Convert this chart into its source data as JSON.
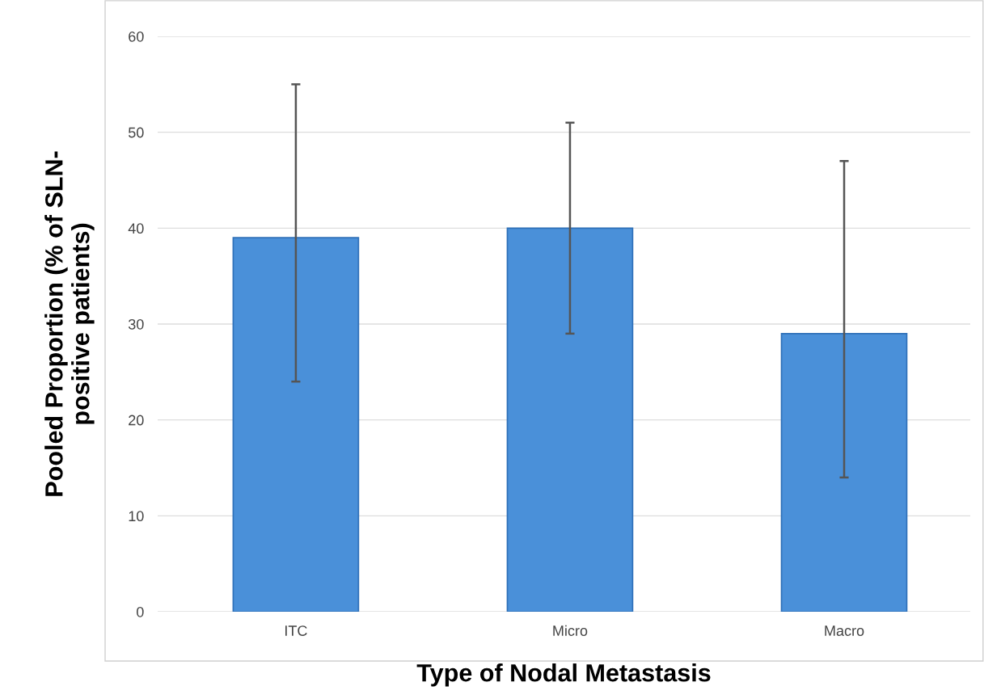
{
  "chart_data": {
    "type": "bar",
    "xlabel": "Type of Nodal Metastasis",
    "ylabel": "Pooled Proportion (% of SLN-\npositive patients)",
    "categories": [
      "ITC",
      "Micro",
      "Macro"
    ],
    "values": [
      39,
      40,
      29
    ],
    "errors": [
      [
        24,
        55
      ],
      [
        29,
        51
      ],
      [
        14,
        47
      ]
    ],
    "color": "#4a90d9",
    "ylim": [
      0,
      60
    ],
    "yticks": [
      0,
      10,
      20,
      30,
      40,
      50,
      60
    ],
    "grid": "y"
  }
}
